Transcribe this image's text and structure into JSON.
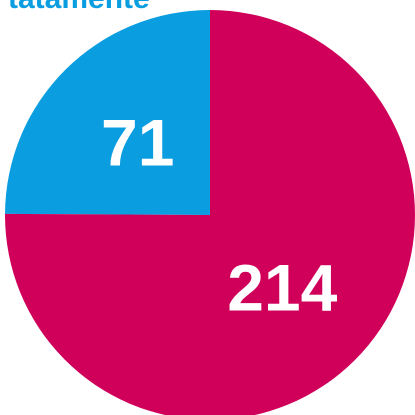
{
  "chart_data": {
    "type": "pie",
    "title": "tatamente",
    "categories": [
      null,
      null
    ],
    "values": [
      71,
      214
    ],
    "colors": [
      "#0a9ee0",
      "#d0005a"
    ],
    "start_angle": 0,
    "direction": "counterclockwise"
  }
}
